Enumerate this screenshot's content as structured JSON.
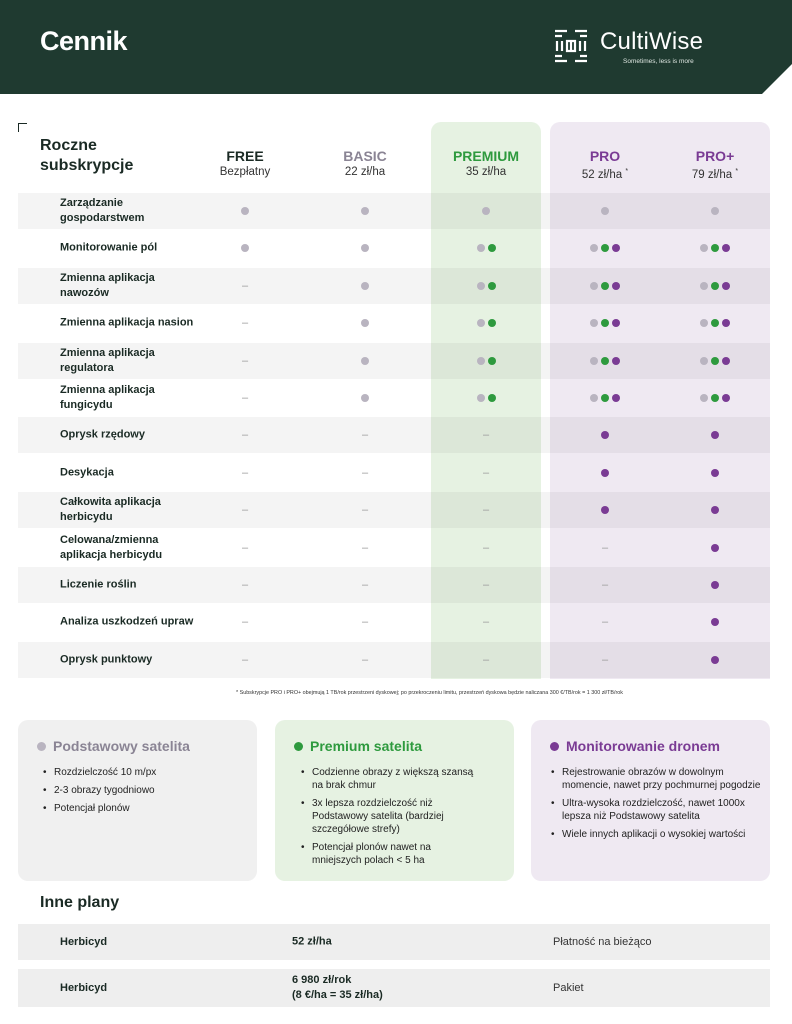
{
  "colors": {
    "header_bg": "#1f3a30",
    "green": "#2e9a3e",
    "purple": "#7a3b94",
    "gray_dot": "#b9b4c0",
    "premium_bg": "#e6f2e2",
    "pro_bg": "#efe9f2"
  },
  "header": {
    "title": "Cennik",
    "brand_name": "CultiWise",
    "brand_tagline": "Sometimes, less is more",
    "logo_icon": "cultiwise-logo"
  },
  "table": {
    "title_line1": "Roczne",
    "title_line2": "subskrypcje",
    "plans": [
      {
        "name": "FREE",
        "price": "Bezpłatny",
        "asterisk": "",
        "color": "#1a2a24"
      },
      {
        "name": "BASIC",
        "price": "22 zł/ha",
        "asterisk": "",
        "color": "#8a8494"
      },
      {
        "name": "PREMIUM",
        "price": "35 zł/ha",
        "asterisk": "",
        "color": "#2e9a3e"
      },
      {
        "name": "PRO",
        "price": "52 zł/ha",
        "asterisk": "*",
        "color": "#7a3b94"
      },
      {
        "name": "PRO+",
        "price": "79 zł/ha",
        "asterisk": "*",
        "color": "#7a3b94"
      }
    ],
    "rows": [
      {
        "label": "Zarządzanie gospodarstwem",
        "cells": [
          [
            "gray"
          ],
          [
            "gray"
          ],
          [
            "gray"
          ],
          [
            "gray"
          ],
          [
            "gray"
          ]
        ]
      },
      {
        "label": "Monitorowanie pól",
        "cells": [
          [
            "gray"
          ],
          [
            "gray"
          ],
          [
            "gray",
            "green"
          ],
          [
            "gray",
            "green",
            "purple"
          ],
          [
            "gray",
            "green",
            "purple"
          ]
        ]
      },
      {
        "label": "Zmienna aplikacja nawozów",
        "cells": [
          [],
          [
            "gray"
          ],
          [
            "gray",
            "green"
          ],
          [
            "gray",
            "green",
            "purple"
          ],
          [
            "gray",
            "green",
            "purple"
          ]
        ]
      },
      {
        "label": "Zmienna aplikacja nasion",
        "cells": [
          [],
          [
            "gray"
          ],
          [
            "gray",
            "green"
          ],
          [
            "gray",
            "green",
            "purple"
          ],
          [
            "gray",
            "green",
            "purple"
          ]
        ]
      },
      {
        "label": "Zmienna aplikacja regulatora",
        "cells": [
          [],
          [
            "gray"
          ],
          [
            "gray",
            "green"
          ],
          [
            "gray",
            "green",
            "purple"
          ],
          [
            "gray",
            "green",
            "purple"
          ]
        ]
      },
      {
        "label": "Zmienna aplikacja fungicydu",
        "cells": [
          [],
          [
            "gray"
          ],
          [
            "gray",
            "green"
          ],
          [
            "gray",
            "green",
            "purple"
          ],
          [
            "gray",
            "green",
            "purple"
          ]
        ]
      },
      {
        "label": "Oprysk rzędowy",
        "cells": [
          [],
          [],
          [],
          [
            "purple"
          ],
          [
            "purple"
          ]
        ]
      },
      {
        "label": "Desykacja",
        "cells": [
          [],
          [],
          [],
          [
            "purple"
          ],
          [
            "purple"
          ]
        ]
      },
      {
        "label": "Całkowita aplikacja herbicydu",
        "cells": [
          [],
          [],
          [],
          [
            "purple"
          ],
          [
            "purple"
          ]
        ]
      },
      {
        "label": "Celowana/zmienna aplikacja herbicydu",
        "cells": [
          [],
          [],
          [],
          [],
          [
            "purple"
          ]
        ]
      },
      {
        "label": "Liczenie roślin",
        "cells": [
          [],
          [],
          [],
          [],
          [
            "purple"
          ]
        ]
      },
      {
        "label": "Analiza uszkodzeń upraw",
        "cells": [
          [],
          [],
          [],
          [],
          [
            "purple"
          ]
        ]
      },
      {
        "label": "Oprysk punktowy",
        "cells": [
          [],
          [],
          [],
          [],
          [
            "purple"
          ]
        ]
      }
    ],
    "empty_cell_text": "–"
  },
  "footnote": "* Subskrypcje PRO i PRO+ obejmują 1 TB/rok przestrzeni dyskowej; po przekroczeniu limitu, przestrzeń dyskowa będzie naliczana 300 €/TB/rok = 1 300 zł/TB/rok",
  "features": {
    "basic": {
      "title": "Podstawowy satelita",
      "items": [
        "Rozdzielczość 10 m/px",
        "2-3 obrazy tygodniowo",
        "Potencjał plonów"
      ]
    },
    "premium": {
      "title": "Premium satelita",
      "items": [
        "Codzienne obrazy z większą szansą na brak chmur",
        "3x lepsza rozdzielczość niż Podstawowy satelita (bardziej szczegółowe strefy)",
        "Potencjał plonów nawet na mniejszych polach < 5 ha"
      ]
    },
    "drone": {
      "title": "Monitorowanie dronem",
      "items": [
        "Rejestrowanie obrazów w dowolnym momencie, nawet przy pochmurnej pogodzie",
        "Ultra-wysoka rozdzielczość, nawet 1000x lepsza niż Podstawowy satelita",
        "Wiele innych aplikacji o wysokiej wartości"
      ]
    }
  },
  "other_plans": {
    "title": "Inne plany",
    "rows": [
      {
        "name": "Herbicyd",
        "price_line1": "52 zł/ha",
        "price_line2": "",
        "type": "Płatność na bieżąco"
      },
      {
        "name": "Herbicyd",
        "price_line1": "6 980 zł/rok",
        "price_line2": "(8 €/ha = 35 zł/ha)",
        "type": "Pakiet"
      }
    ]
  }
}
